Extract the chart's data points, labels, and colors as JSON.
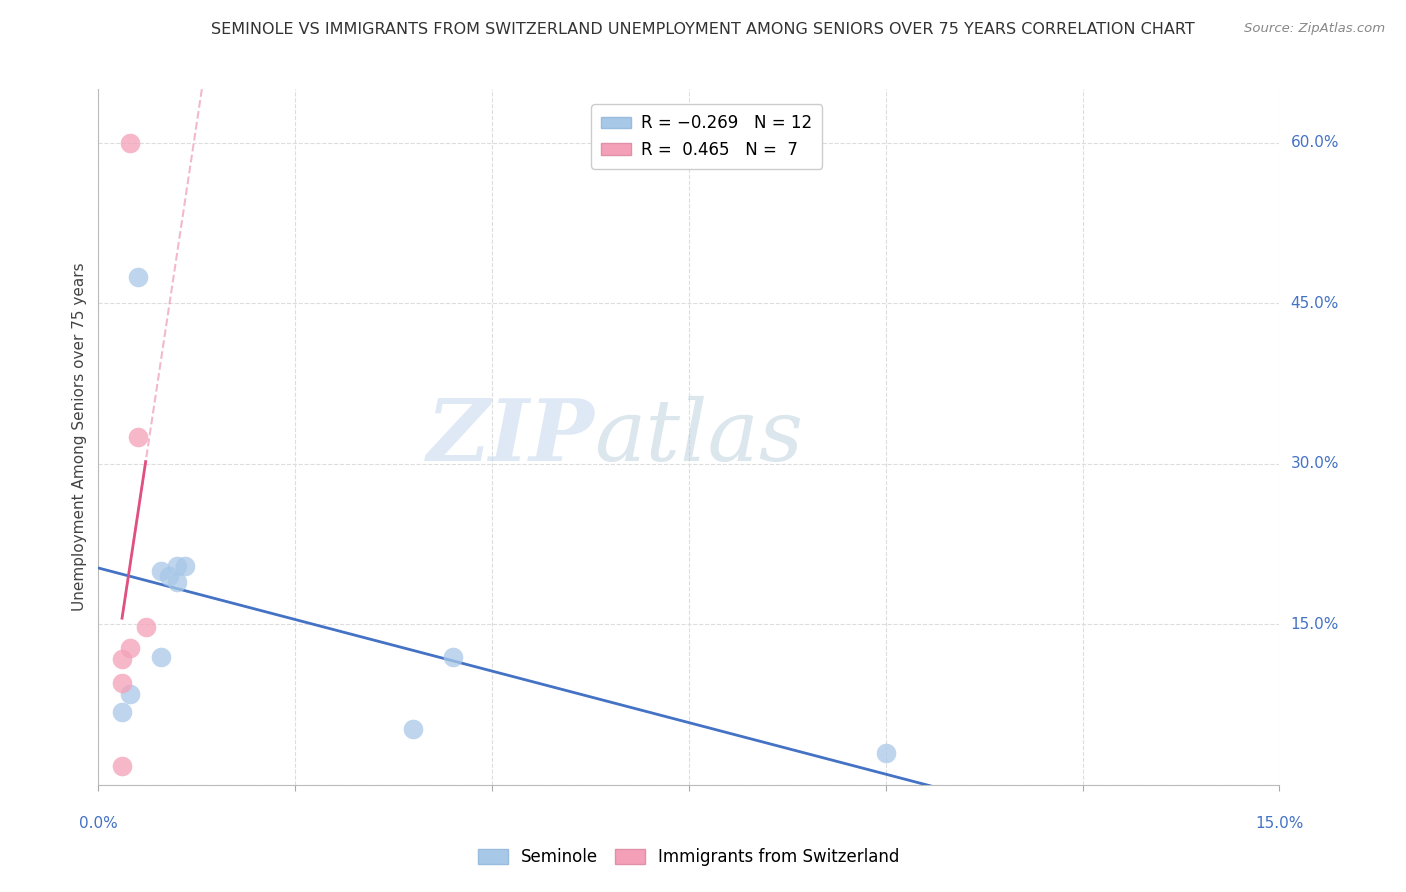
{
  "title": "SEMINOLE VS IMMIGRANTS FROM SWITZERLAND UNEMPLOYMENT AMONG SENIORS OVER 75 YEARS CORRELATION CHART",
  "source": "Source: ZipAtlas.com",
  "ylabel": "Unemployment Among Seniors over 75 years",
  "xlim": [
    0.0,
    0.15
  ],
  "ylim": [
    0.0,
    0.65
  ],
  "legend_entry1": "R = -0.269   N = 12",
  "legend_entry2": "R =  0.465   N =  7",
  "seminole_color": "#a8c8e8",
  "swiss_color": "#f4a0b8",
  "trendline_seminole_color": "#4472c4",
  "trendline_swiss_color": "#e05080",
  "seminole_points": [
    [
      0.005,
      0.475
    ],
    [
      0.008,
      0.2
    ],
    [
      0.01,
      0.205
    ],
    [
      0.011,
      0.205
    ],
    [
      0.01,
      0.19
    ],
    [
      0.008,
      0.12
    ],
    [
      0.009,
      0.195
    ],
    [
      0.004,
      0.085
    ],
    [
      0.003,
      0.068
    ],
    [
      0.045,
      0.12
    ],
    [
      0.04,
      0.052
    ],
    [
      0.1,
      0.03
    ]
  ],
  "swiss_points": [
    [
      0.004,
      0.6
    ],
    [
      0.005,
      0.325
    ],
    [
      0.006,
      0.148
    ],
    [
      0.004,
      0.128
    ],
    [
      0.003,
      0.118
    ],
    [
      0.003,
      0.095
    ],
    [
      0.003,
      0.018
    ]
  ],
  "watermark_zip": "ZIP",
  "watermark_atlas": "atlas",
  "background_color": "#ffffff",
  "grid_color": "#dddddd",
  "right_yticks": [
    0.15,
    0.3,
    0.45,
    0.6
  ],
  "right_ylabels": [
    "15.0%",
    "30.0%",
    "45.0%",
    "60.0%"
  ],
  "xtick_positions": [
    0.0,
    0.025,
    0.05,
    0.075,
    0.1,
    0.125,
    0.15
  ],
  "ytick_positions": [
    0.0,
    0.15,
    0.3,
    0.45,
    0.6
  ]
}
